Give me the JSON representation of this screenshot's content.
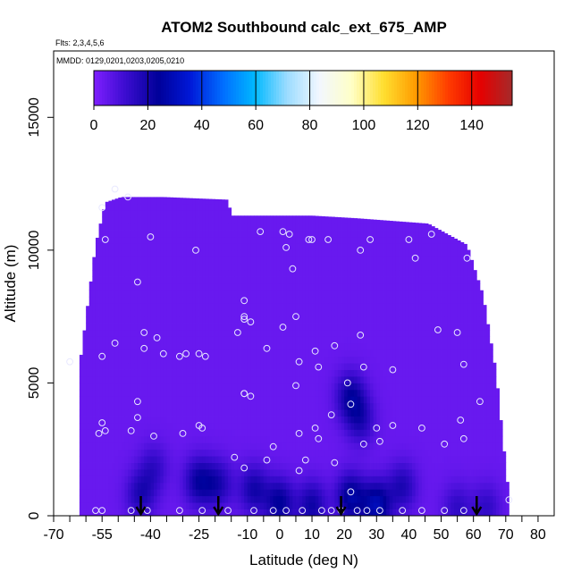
{
  "chart_data": {
    "type": "heatmap",
    "title": "ATOM2 Southbound calc_ext_675_AMP",
    "flights_note": "Flts: 2,3,4,5,6",
    "dates_note": "MMDD: 0129,0201,0203,0205,0210",
    "xlabel": "Latitude (deg N)",
    "ylabel": "Altitude (m)",
    "xlim": [
      -70,
      85
    ],
    "ylim": [
      0,
      17500
    ],
    "x_ticks": [
      -70,
      -55,
      -40,
      -25,
      -10,
      0,
      10,
      20,
      30,
      40,
      50,
      60,
      70,
      80
    ],
    "y_ticks": [
      0,
      5000,
      10000,
      15000
    ],
    "colorbar": {
      "min": 0,
      "max": 155,
      "ticks": [
        0,
        20,
        40,
        60,
        80,
        100,
        120,
        140
      ],
      "colors": [
        "#7f1fff",
        "#3a0ccf",
        "#000099",
        "#0018d8",
        "#006dff",
        "#00b8ff",
        "#9bdcff",
        "#f2f7ff",
        "#ffffc8",
        "#ffdf30",
        "#ff9b00",
        "#ff3d00",
        "#e60000",
        "#a52a2a"
      ]
    },
    "background_value": 4,
    "envelope": [
      {
        "lat": -62,
        "top": 5600
      },
      {
        "lat": -57,
        "top": 10200
      },
      {
        "lat": -54,
        "top": 11800
      },
      {
        "lat": -49,
        "top": 12000
      },
      {
        "lat": -44,
        "top": 12000
      },
      {
        "lat": -36,
        "top": 12000
      },
      {
        "lat": -16,
        "top": 11900
      },
      {
        "lat": -15,
        "top": 11300
      },
      {
        "lat": 10,
        "top": 11300
      },
      {
        "lat": 24,
        "top": 11200
      },
      {
        "lat": 46,
        "top": 11000
      },
      {
        "lat": 58,
        "top": 10200
      },
      {
        "lat": 63,
        "top": 8300
      },
      {
        "lat": 67,
        "top": 5400
      },
      {
        "lat": 69,
        "top": 3000
      },
      {
        "lat": 71,
        "top": 700
      }
    ],
    "low_value_regions": [
      {
        "lat": -43,
        "alt": 800,
        "value": 14
      },
      {
        "lat": -39,
        "alt": 1800,
        "value": 10
      },
      {
        "lat": -25,
        "alt": 1300,
        "value": 18
      },
      {
        "lat": -19,
        "alt": 1200,
        "value": 14
      },
      {
        "lat": -8,
        "alt": 1000,
        "value": 16
      },
      {
        "lat": 0,
        "alt": 500,
        "value": 20
      },
      {
        "lat": 10,
        "alt": 400,
        "value": 17
      },
      {
        "lat": 22,
        "alt": 700,
        "value": 22
      },
      {
        "lat": 30,
        "alt": 400,
        "value": 25
      },
      {
        "lat": 38,
        "alt": 1100,
        "value": 14
      },
      {
        "lat": 22,
        "alt": 4500,
        "value": 18
      },
      {
        "lat": 25,
        "alt": 3600,
        "value": 13
      },
      {
        "lat": 55,
        "alt": 300,
        "value": 10
      },
      {
        "lat": 64,
        "alt": 300,
        "value": 10
      }
    ],
    "observations": [
      {
        "lat": -51,
        "alt": 12300
      },
      {
        "lat": -47,
        "alt": 12000
      },
      {
        "lat": -55,
        "alt": 11600
      },
      {
        "lat": -40,
        "alt": 10500
      },
      {
        "lat": -54,
        "alt": 10400
      },
      {
        "lat": -26,
        "alt": 10000
      },
      {
        "lat": -44,
        "alt": 8800
      },
      {
        "lat": -6,
        "alt": 10700
      },
      {
        "lat": 1,
        "alt": 10700
      },
      {
        "lat": 3,
        "alt": 10600
      },
      {
        "lat": 9,
        "alt": 10400
      },
      {
        "lat": 10,
        "alt": 10400
      },
      {
        "lat": 15,
        "alt": 10400
      },
      {
        "lat": 28,
        "alt": 10400
      },
      {
        "lat": 40,
        "alt": 10400
      },
      {
        "lat": 47,
        "alt": 10600
      },
      {
        "lat": 25,
        "alt": 10000
      },
      {
        "lat": 2,
        "alt": 10100
      },
      {
        "lat": 42,
        "alt": 9700
      },
      {
        "lat": 58,
        "alt": 9700
      },
      {
        "lat": 4,
        "alt": 9300
      },
      {
        "lat": -11,
        "alt": 8100
      },
      {
        "lat": -11,
        "alt": 7500
      },
      {
        "lat": -11,
        "alt": 7400
      },
      {
        "lat": -9,
        "alt": 7300
      },
      {
        "lat": 5,
        "alt": 7500
      },
      {
        "lat": 1,
        "alt": 7100
      },
      {
        "lat": 49,
        "alt": 7000
      },
      {
        "lat": 55,
        "alt": 6900
      },
      {
        "lat": -42,
        "alt": 6900
      },
      {
        "lat": -38,
        "alt": 6700
      },
      {
        "lat": -51,
        "alt": 6500
      },
      {
        "lat": -42,
        "alt": 6300
      },
      {
        "lat": -13,
        "alt": 6900
      },
      {
        "lat": -4,
        "alt": 6300
      },
      {
        "lat": 25,
        "alt": 6800
      },
      {
        "lat": 17,
        "alt": 6400
      },
      {
        "lat": 11,
        "alt": 6200
      },
      {
        "lat": -65,
        "alt": 5800
      },
      {
        "lat": -55,
        "alt": 6000
      },
      {
        "lat": -36,
        "alt": 6100
      },
      {
        "lat": -31,
        "alt": 6000
      },
      {
        "lat": -29,
        "alt": 6100
      },
      {
        "lat": -25,
        "alt": 6100
      },
      {
        "lat": -23,
        "alt": 6000
      },
      {
        "lat": 6,
        "alt": 5800
      },
      {
        "lat": 12,
        "alt": 5600
      },
      {
        "lat": 26,
        "alt": 5600
      },
      {
        "lat": 35,
        "alt": 5500
      },
      {
        "lat": 57,
        "alt": 5700
      },
      {
        "lat": 21,
        "alt": 5000
      },
      {
        "lat": 5,
        "alt": 4900
      },
      {
        "lat": -11,
        "alt": 4600
      },
      {
        "lat": -11,
        "alt": 4600
      },
      {
        "lat": -9,
        "alt": 4500
      },
      {
        "lat": -44,
        "alt": 4300
      },
      {
        "lat": 22,
        "alt": 4200
      },
      {
        "lat": 62,
        "alt": 4300
      },
      {
        "lat": -44,
        "alt": 3700
      },
      {
        "lat": 16,
        "alt": 3800
      },
      {
        "lat": 56,
        "alt": 3600
      },
      {
        "lat": -55,
        "alt": 3500
      },
      {
        "lat": -56,
        "alt": 3100
      },
      {
        "lat": -54,
        "alt": 3200
      },
      {
        "lat": -46,
        "alt": 3200
      },
      {
        "lat": -39,
        "alt": 3000
      },
      {
        "lat": -30,
        "alt": 3100
      },
      {
        "lat": -25,
        "alt": 3400
      },
      {
        "lat": -24,
        "alt": 3300
      },
      {
        "lat": 6,
        "alt": 3100
      },
      {
        "lat": 11,
        "alt": 3300
      },
      {
        "lat": 30,
        "alt": 3300
      },
      {
        "lat": 35,
        "alt": 3400
      },
      {
        "lat": 44,
        "alt": 3300
      },
      {
        "lat": 12,
        "alt": 2900
      },
      {
        "lat": 26,
        "alt": 2700
      },
      {
        "lat": 31,
        "alt": 2800
      },
      {
        "lat": 51,
        "alt": 2700
      },
      {
        "lat": 57,
        "alt": 2900
      },
      {
        "lat": -2,
        "alt": 2600
      },
      {
        "lat": -4,
        "alt": 2100
      },
      {
        "lat": -14,
        "alt": 2200
      },
      {
        "lat": -11,
        "alt": 1800
      },
      {
        "lat": 8,
        "alt": 2100
      },
      {
        "lat": 17,
        "alt": 2000
      },
      {
        "lat": 6,
        "alt": 1700
      },
      {
        "lat": 22,
        "alt": 900
      },
      {
        "lat": -57,
        "alt": 200
      },
      {
        "lat": -55,
        "alt": 200
      },
      {
        "lat": -46,
        "alt": 200
      },
      {
        "lat": -41,
        "alt": 200
      },
      {
        "lat": -31,
        "alt": 200
      },
      {
        "lat": -24,
        "alt": 200
      },
      {
        "lat": -16,
        "alt": 200
      },
      {
        "lat": -8,
        "alt": 200
      },
      {
        "lat": -2,
        "alt": 200
      },
      {
        "lat": 2,
        "alt": 200
      },
      {
        "lat": 7,
        "alt": 200
      },
      {
        "lat": 13,
        "alt": 200
      },
      {
        "lat": 16,
        "alt": 200
      },
      {
        "lat": 19,
        "alt": 200
      },
      {
        "lat": 24,
        "alt": 200
      },
      {
        "lat": 27,
        "alt": 200
      },
      {
        "lat": 31,
        "alt": 200
      },
      {
        "lat": 38,
        "alt": 200
      },
      {
        "lat": 44,
        "alt": 200
      },
      {
        "lat": 51,
        "alt": 200
      },
      {
        "lat": 57,
        "alt": 200
      },
      {
        "lat": 71,
        "alt": 600
      }
    ],
    "arrows_lat": [
      -43,
      -19,
      19,
      61
    ]
  }
}
